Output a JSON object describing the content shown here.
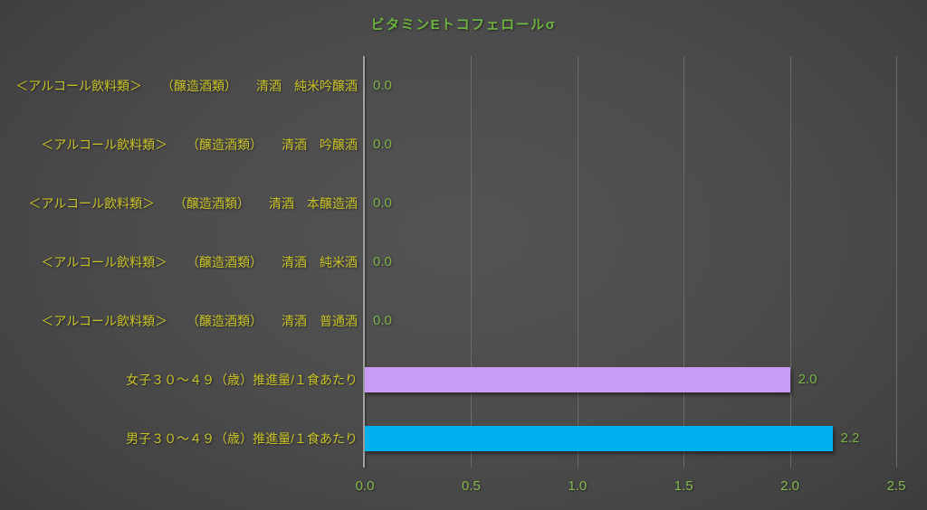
{
  "colors": {
    "title_green": "#6DB33F",
    "label_yellow": "#C9C229",
    "tick_green": "#85B84F",
    "value_green": "#7DB349",
    "axis_line": "#A3A3A3",
    "gridline": "#6B6B6B",
    "bar_purple": "#C89BF4",
    "bar_blue": "#00B0F0"
  },
  "chart_data": {
    "type": "bar",
    "orientation": "horizontal",
    "title": "ビタミンEトコフェロールσ",
    "categories": [
      "＜アルコール飲料類＞　　（醸造酒類）　　清酒　純米吟醸酒",
      "＜アルコール飲料類＞　　（醸造酒類）　　清酒　吟醸酒",
      "＜アルコール飲料類＞　　（醸造酒類）　　清酒　本醸造酒",
      "＜アルコール飲料類＞　　（醸造酒類）　　清酒　純米酒",
      "＜アルコール飲料類＞　　（醸造酒類）　　清酒　普通酒",
      "女子３０〜４９（歳）推進量/１食あたり",
      "男子３０〜４９（歳）推進量/１食あたり"
    ],
    "values": [
      0.0,
      0.0,
      0.0,
      0.0,
      0.0,
      2.0,
      2.2
    ],
    "value_labels": [
      "0.0",
      "0.0",
      "0.0",
      "0.0",
      "0.0",
      "2.0",
      "2.2"
    ],
    "bar_colors": [
      null,
      null,
      null,
      null,
      null,
      "#C89BF4",
      "#00B0F0"
    ],
    "xlabel": "",
    "ylabel": "",
    "xlim": [
      0,
      2.5
    ],
    "x_ticks": [
      "0.0",
      "0.5",
      "1.0",
      "1.5",
      "2.0",
      "2.5"
    ],
    "grid": true,
    "legend": false
  }
}
